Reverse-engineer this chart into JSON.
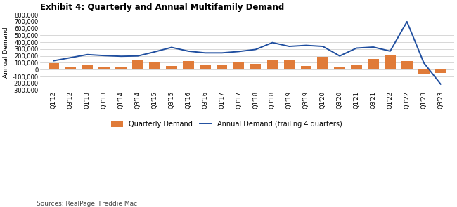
{
  "title": "Exhibit 4: Quarterly and Annual Multifamily Demand",
  "source": "Sources: RealPage, Freddie Mac",
  "ylabel": "Annual Demand",
  "quarters": [
    "Q1’12",
    "Q3’12",
    "Q1’13",
    "Q3’13",
    "Q1’14",
    "Q3’14",
    "Q1’15",
    "Q3’15",
    "Q1’16",
    "Q3’16",
    "Q1’17",
    "Q3’17",
    "Q1’18",
    "Q3’18",
    "Q1’19",
    "Q3’19",
    "Q1’20",
    "Q3’20",
    "Q1’21",
    "Q3’21",
    "Q1’22",
    "Q3’22",
    "Q1’23",
    "Q3’23"
  ],
  "quarterly_bars": [
    90000,
    45000,
    75000,
    30000,
    40000,
    150000,
    100000,
    55000,
    130000,
    65000,
    60000,
    100000,
    85000,
    150000,
    140000,
    50000,
    190000,
    30000,
    75000,
    160000,
    220000,
    130000,
    -65000,
    -45000
  ],
  "annual_line": [
    130000,
    175000,
    220000,
    205000,
    195000,
    200000,
    260000,
    325000,
    270000,
    245000,
    245000,
    265000,
    295000,
    395000,
    340000,
    355000,
    340000,
    200000,
    315000,
    330000,
    270000,
    700000,
    100000,
    -210000
  ],
  "bar_color": "#E07B39",
  "line_color": "#1F4E9F",
  "ylim_min": -300000,
  "ylim_max": 800000,
  "yticks": [
    -300000,
    -200000,
    -100000,
    0,
    100000,
    200000,
    300000,
    400000,
    500000,
    600000,
    700000,
    800000
  ],
  "grid_color": "#C8C8C8",
  "title_fontsize": 8.5,
  "tick_fontsize": 6,
  "ylabel_fontsize": 6.5,
  "source_fontsize": 6.5,
  "legend_fontsize": 7
}
